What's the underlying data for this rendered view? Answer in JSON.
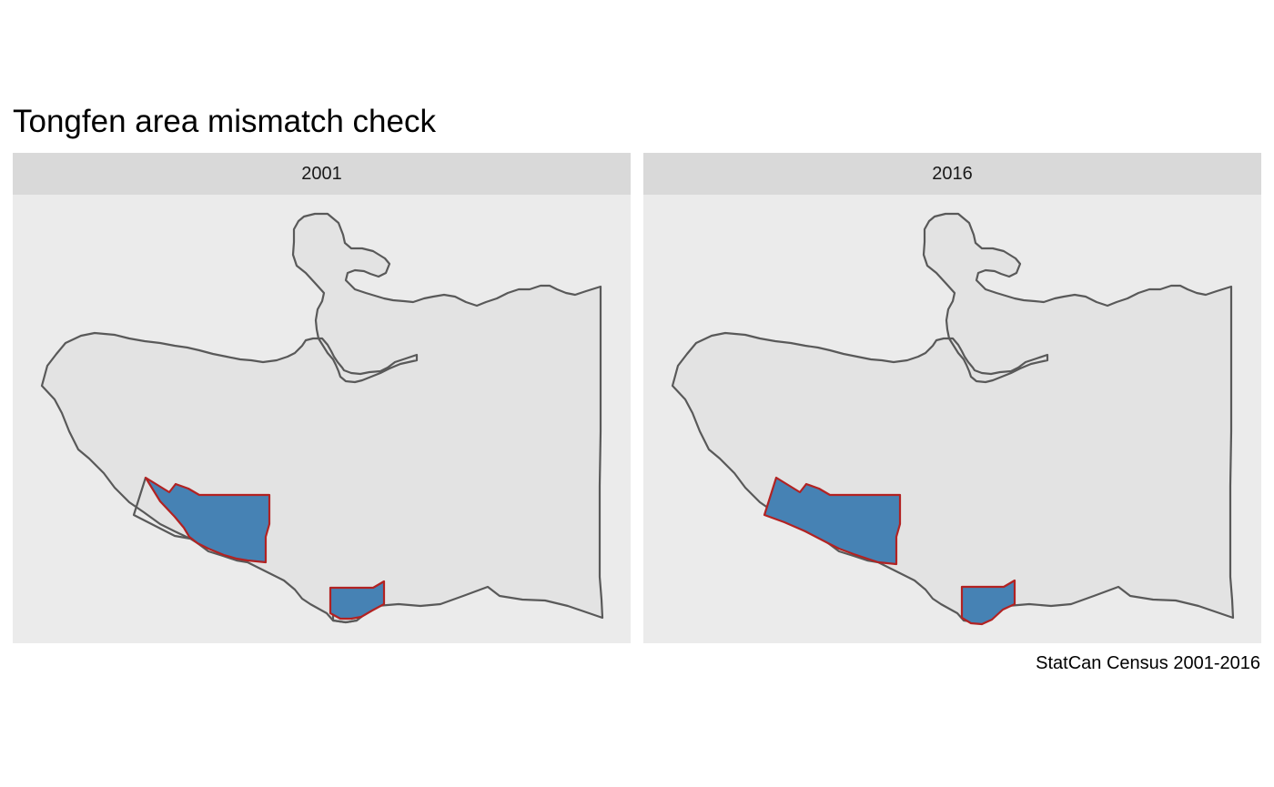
{
  "title": "Tongfen area mismatch check",
  "caption": "StatCan Census 2001-2016",
  "colors": {
    "panel_bg": "#ebebeb",
    "strip_bg": "#d9d9d9",
    "region_fill": "#e3e3e3",
    "outline": "#595959",
    "highlight_fill": "#4682b4",
    "highlight_border": "#b22222"
  },
  "facets": [
    {
      "label": "2001",
      "highlighted_areas": 2
    },
    {
      "label": "2016",
      "highlighted_areas": 2
    }
  ]
}
